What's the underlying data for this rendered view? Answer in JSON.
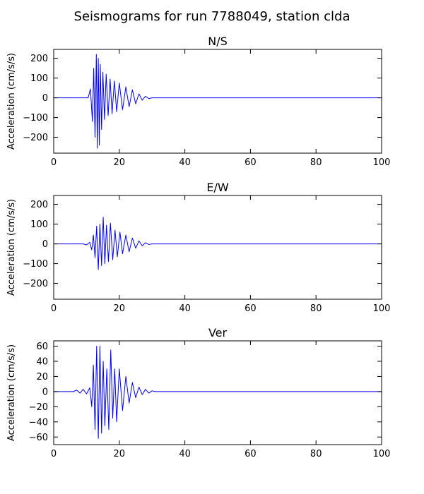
{
  "figure": {
    "suptitle": "Seismograms for run 7788049, station clda"
  },
  "chart_data": [
    {
      "type": "line",
      "title": "N/S",
      "xlabel": "",
      "ylabel": "Acceleration (cm/s/s)",
      "xlim": [
        0,
        100
      ],
      "ylim": [
        -280,
        245
      ],
      "xticks": [
        0,
        20,
        40,
        60,
        80,
        100
      ],
      "yticks": [
        -200,
        -100,
        0,
        100,
        200
      ],
      "grid": false,
      "series": [
        {
          "color": "#0000ff",
          "x": [
            0,
            10.5,
            11.2,
            11.8,
            12.2,
            12.6,
            13.0,
            13.3,
            13.6,
            13.9,
            14.2,
            14.6,
            15.0,
            15.5,
            16.0,
            16.6,
            17.2,
            17.8,
            18.5,
            19.2,
            20.0,
            21.0,
            22.0,
            23.0,
            24.0,
            25.0,
            26.0,
            27.0,
            28.0,
            29.0,
            30.0,
            32.0,
            100
          ],
          "y": [
            0,
            0,
            45,
            -120,
            150,
            -200,
            220,
            -255,
            200,
            -240,
            170,
            -160,
            130,
            -110,
            120,
            -90,
            95,
            -80,
            85,
            -70,
            75,
            -60,
            55,
            -45,
            40,
            -30,
            20,
            -12,
            8,
            -4,
            0,
            0,
            0
          ]
        }
      ]
    },
    {
      "type": "line",
      "title": "E/W",
      "xlabel": "",
      "ylabel": "Acceleration (cm/s/s)",
      "xlim": [
        0,
        100
      ],
      "ylim": [
        -280,
        245
      ],
      "xticks": [
        0,
        20,
        40,
        60,
        80,
        100
      ],
      "yticks": [
        -200,
        -100,
        0,
        100,
        200
      ],
      "grid": false,
      "series": [
        {
          "color": "#0000ff",
          "x": [
            0,
            9.0,
            10.0,
            11.0,
            11.6,
            12.1,
            12.6,
            13.1,
            13.6,
            14.1,
            14.6,
            15.1,
            15.6,
            16.1,
            16.7,
            17.3,
            18.0,
            18.7,
            19.4,
            20.2,
            21.0,
            22.0,
            23.0,
            24.0,
            25.0,
            26.0,
            27.0,
            28.0,
            29.0,
            30.0,
            100
          ],
          "y": [
            0,
            0,
            -5,
            8,
            -30,
            45,
            -70,
            90,
            -130,
            100,
            -110,
            135,
            -100,
            95,
            -90,
            105,
            -80,
            70,
            -65,
            60,
            -50,
            45,
            -40,
            30,
            -22,
            15,
            -10,
            6,
            -3,
            0,
            0
          ]
        }
      ]
    },
    {
      "type": "line",
      "title": "Ver",
      "xlabel": "",
      "ylabel": "Acceleration (cm/s/s)",
      "xlim": [
        0,
        100
      ],
      "ylim": [
        -70,
        67
      ],
      "xticks": [
        0,
        20,
        40,
        60,
        80,
        100
      ],
      "yticks": [
        -60,
        -40,
        -20,
        0,
        20,
        40,
        60
      ],
      "grid": false,
      "series": [
        {
          "color": "#0000ff",
          "x": [
            0,
            6.0,
            7.0,
            8.0,
            9.0,
            10.0,
            11.0,
            11.6,
            12.1,
            12.6,
            13.1,
            13.6,
            14.1,
            14.6,
            15.1,
            15.6,
            16.2,
            16.8,
            17.4,
            18.0,
            18.6,
            19.2,
            20.0,
            21.0,
            22.0,
            23.0,
            24.0,
            25.0,
            26.0,
            27.0,
            28.0,
            29.0,
            30.0,
            31.0,
            100
          ],
          "y": [
            0,
            0,
            2,
            -2,
            3,
            -3,
            5,
            -20,
            35,
            -50,
            60,
            -62,
            60,
            -55,
            40,
            -45,
            30,
            -50,
            55,
            -35,
            30,
            -40,
            30,
            -25,
            20,
            -15,
            12,
            -8,
            6,
            -4,
            3,
            -2,
            1,
            0,
            0
          ]
        }
      ]
    }
  ]
}
